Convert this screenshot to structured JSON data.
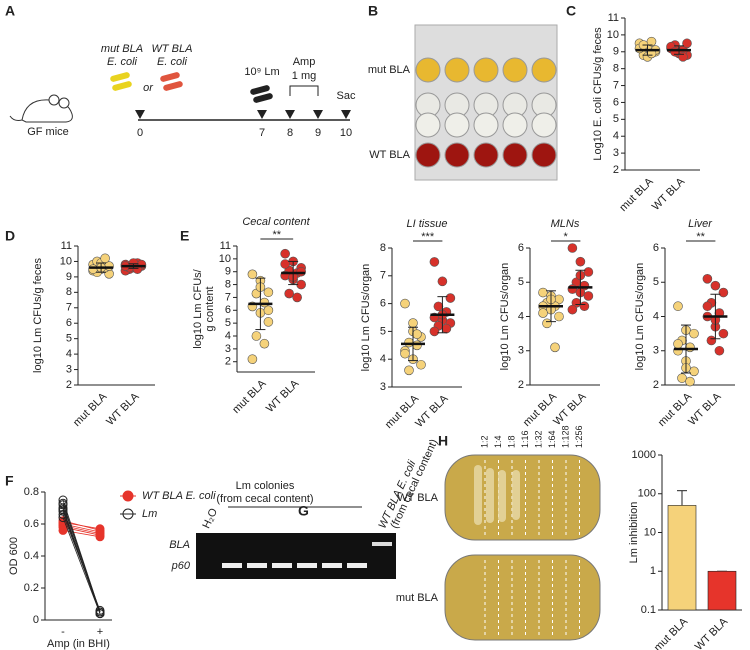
{
  "panels": [
    "A",
    "B",
    "C",
    "D",
    "E",
    "F",
    "G",
    "H"
  ],
  "timeline": {
    "mut_strain": "mut BLA",
    "mut_species": "E. coli",
    "or": "or",
    "wt_strain": "WT BLA",
    "wt_species": "E. coli",
    "lm_dose": "10⁹ Lm",
    "amp": "Amp",
    "amp_dose": "1 mg",
    "sac": "Sac",
    "mice": "GF mice",
    "days": [
      "0",
      "7",
      "8",
      "9",
      "10"
    ]
  },
  "plate_b": {
    "rows": [
      "mut BLA",
      "WT BLA"
    ]
  },
  "gel": {
    "water": "H₂O",
    "colonies": "Lm colonies",
    "colonies_source": "(from cecal content)",
    "control": "WT BLA E. coli",
    "control_source": "(from cecal content)",
    "bands": [
      "BLA",
      "p60"
    ]
  },
  "plates_h": {
    "dilutions": [
      "1:2",
      "1:4",
      "1:8",
      "1:16",
      "1:32",
      "1:64",
      "1:128",
      "1:256"
    ],
    "rows": [
      "WT BLA",
      "mut BLA"
    ]
  },
  "chart_data": [
    {
      "type": "strip",
      "ylabel": "Log10 E. coli CFUs/g feces",
      "ylim": [
        2,
        11
      ],
      "yticks": [
        2,
        3,
        4,
        5,
        6,
        7,
        8,
        9,
        10,
        11
      ],
      "series": [
        {
          "name": "mut BLA",
          "color": "#f5d27a",
          "values": [
            9.5,
            9.3,
            9.0,
            8.8,
            9.6,
            9.2,
            8.7,
            9.1,
            9.4,
            8.9
          ],
          "mean": 9.1,
          "sd": 0.3
        },
        {
          "name": "WT BLA",
          "color": "#d7312a",
          "values": [
            9.2,
            9.0,
            8.8,
            9.4,
            9.1,
            9.3,
            8.9,
            9.5,
            9.0,
            8.7
          ],
          "mean": 9.1,
          "sd": 0.25
        }
      ]
    },
    {
      "type": "strip",
      "ylabel": "log10 Lm CFUs/g feces",
      "ylim": [
        2,
        11
      ],
      "yticks": [
        2,
        3,
        4,
        5,
        6,
        7,
        8,
        9,
        10,
        11
      ],
      "series": [
        {
          "name": "mut BLA",
          "color": "#f5d27a",
          "values": [
            9.8,
            9.5,
            9.2,
            10.0,
            9.6,
            9.4,
            9.9,
            9.7,
            9.3,
            10.2,
            9.5,
            9.6
          ],
          "mean": 9.6,
          "sd": 0.3
        },
        {
          "name": "WT BLA",
          "color": "#d7312a",
          "values": [
            9.8,
            9.6,
            9.7,
            9.5,
            9.9,
            9.4,
            9.7,
            9.8,
            9.6,
            9.5,
            9.7,
            9.9
          ],
          "mean": 9.7,
          "sd": 0.15
        }
      ]
    },
    {
      "type": "strip",
      "title": "Cecal content",
      "ylabel": [
        "log10 Lm CFUs/",
        "g content"
      ],
      "significance": "**",
      "ylim": [
        1.2,
        11
      ],
      "yticks": [
        2,
        3,
        4,
        5,
        6,
        7,
        8,
        9,
        10,
        11
      ],
      "series": [
        {
          "name": "mut BLA",
          "color": "#f5d27a",
          "values": [
            8.8,
            8.3,
            7.4,
            7.3,
            6.6,
            6.3,
            5.8,
            5.1,
            4.0,
            3.4,
            2.2,
            7.8,
            6.0
          ],
          "mean": 6.5,
          "sd": 2.0
        },
        {
          "name": "WT BLA",
          "color": "#d7312a",
          "values": [
            10.4,
            9.8,
            9.3,
            9.1,
            8.9,
            8.7,
            8.4,
            8.0,
            7.3,
            7.0,
            9.6,
            8.6,
            9.0
          ],
          "mean": 8.9,
          "sd": 0.9
        }
      ]
    },
    {
      "type": "strip",
      "title": "LI tissue",
      "ylabel": "log10 Lm CFUs/organ",
      "significance": "***",
      "ylim": [
        3,
        8
      ],
      "yticks": [
        3,
        4,
        5,
        6,
        7,
        8
      ],
      "series": [
        {
          "name": "mut BLA",
          "color": "#f5d27a",
          "values": [
            6.0,
            5.0,
            4.8,
            4.6,
            4.5,
            4.3,
            4.0,
            3.8,
            3.6,
            4.9,
            4.2,
            5.3
          ],
          "mean": 4.55,
          "sd": 0.6
        },
        {
          "name": "WT BLA",
          "color": "#d7312a",
          "values": [
            7.5,
            6.8,
            6.2,
            5.9,
            5.7,
            5.5,
            5.4,
            5.3,
            5.2,
            5.1,
            5.0,
            5.6
          ],
          "mean": 5.6,
          "sd": 0.65
        }
      ]
    },
    {
      "type": "strip",
      "title": "MLNs",
      "ylabel": "log10 Lm CFUs/organ",
      "significance": "*",
      "ylim": [
        2,
        6
      ],
      "yticks": [
        2,
        3,
        4,
        5,
        6
      ],
      "series": [
        {
          "name": "mut BLA",
          "color": "#f5d27a",
          "values": [
            4.7,
            4.6,
            4.5,
            4.4,
            4.3,
            4.3,
            4.2,
            4.0,
            3.8,
            3.1,
            4.1,
            4.5
          ],
          "mean": 4.3,
          "sd": 0.45
        },
        {
          "name": "WT BLA",
          "color": "#d7312a",
          "values": [
            6.0,
            5.6,
            5.3,
            5.0,
            4.9,
            4.8,
            4.7,
            4.6,
            4.4,
            4.3,
            4.2,
            5.2
          ],
          "mean": 4.85,
          "sd": 0.5
        }
      ]
    },
    {
      "type": "strip",
      "title": "Liver",
      "ylabel": "log10 Lm CFUs/organ",
      "significance": "**",
      "ylim": [
        2,
        6
      ],
      "yticks": [
        2,
        3,
        4,
        5,
        6
      ],
      "series": [
        {
          "name": "mut BLA",
          "color": "#f5d27a",
          "values": [
            4.3,
            3.6,
            3.5,
            3.3,
            3.1,
            3.0,
            2.7,
            2.4,
            2.2,
            2.1,
            3.2,
            2.5
          ],
          "mean": 3.05,
          "sd": 0.7
        },
        {
          "name": "WT BLA",
          "color": "#d7312a",
          "values": [
            5.1,
            4.9,
            4.7,
            4.4,
            4.1,
            4.0,
            3.7,
            3.5,
            3.3,
            3.0,
            4.3,
            3.9
          ],
          "mean": 4.0,
          "sd": 0.65
        }
      ]
    },
    {
      "type": "paired",
      "ylabel": "OD 600",
      "xlabel": "Amp (in BHI)",
      "categories": [
        "-",
        "+"
      ],
      "ylim": [
        0,
        0.8
      ],
      "yticks": [
        0,
        0.2,
        0.4,
        0.6,
        0.8
      ],
      "series": [
        {
          "name": "WT BLA E. coli",
          "color": "#e6342b",
          "filled": true,
          "start": [
            0.6,
            0.58,
            0.62,
            0.56,
            0.59,
            0.61
          ],
          "end": [
            0.55,
            0.53,
            0.56,
            0.52,
            0.54,
            0.57
          ]
        },
        {
          "name": "Lm",
          "color": "#222222",
          "filled": false,
          "start": [
            0.72,
            0.7,
            0.68,
            0.66,
            0.64,
            0.75,
            0.73,
            0.69
          ],
          "end": [
            0.05,
            0.04,
            0.05,
            0.06,
            0.04,
            0.05,
            0.05,
            0.04
          ]
        }
      ]
    },
    {
      "type": "bar",
      "ylabel": "Lm inhibition",
      "log": true,
      "categories": [
        "mut BLA",
        "WT BLA"
      ],
      "values": [
        50,
        1
      ],
      "errors": [
        70,
        0
      ],
      "colors": [
        "#f5d27a",
        "#e6342b"
      ],
      "ylim": [
        0.1,
        1000
      ],
      "yticks": [
        0.1,
        1,
        10,
        100,
        1000
      ]
    }
  ]
}
